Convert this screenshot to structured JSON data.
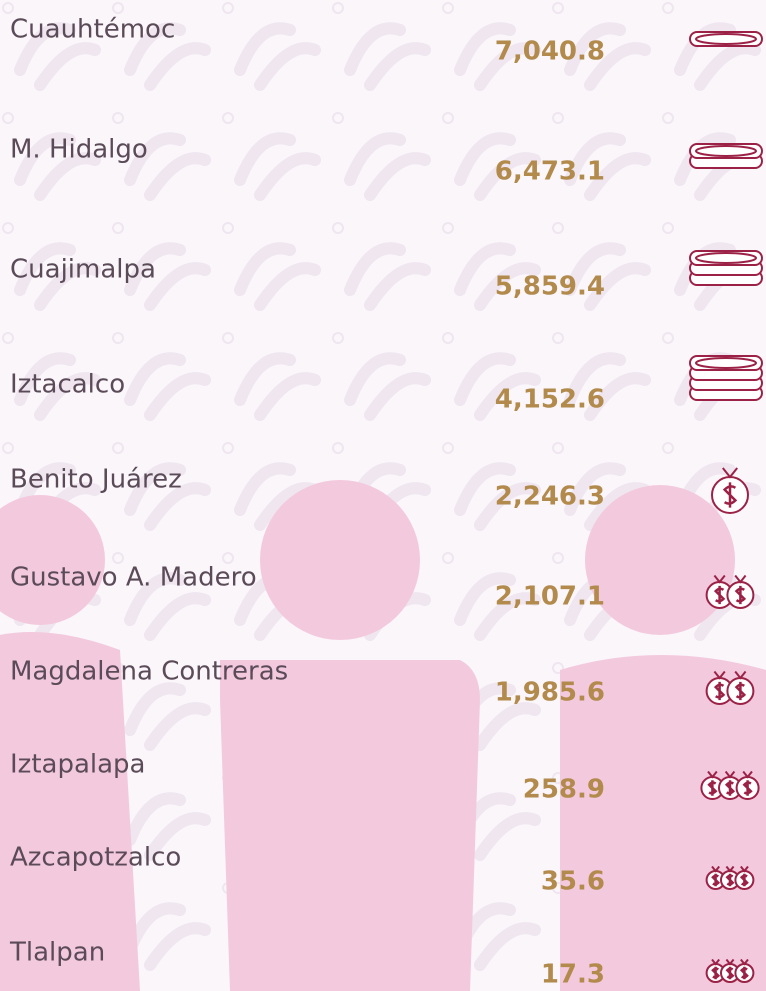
{
  "rows": [
    {
      "label": "Cuauhtémoc",
      "value": "7,040.8"
    },
    {
      "label": "M. Hidalgo",
      "value": "6,473.1"
    },
    {
      "label": "Cuajimalpa",
      "value": "5,859.4"
    },
    {
      "label": "Iztacalco",
      "value": "4,152.6"
    },
    {
      "label": "Benito Juárez",
      "value": "2,246.3"
    },
    {
      "label": "Gustavo A. Madero",
      "value": "2,107.1"
    },
    {
      "label": "Magdalena Contreras",
      "value": "1,985.6"
    },
    {
      "label": "Iztapalapa",
      "value": "258.9"
    },
    {
      "label": "Azcapotzalco",
      "value": "35.6"
    },
    {
      "label": "Tlalpan",
      "value": "17.3"
    }
  ]
}
